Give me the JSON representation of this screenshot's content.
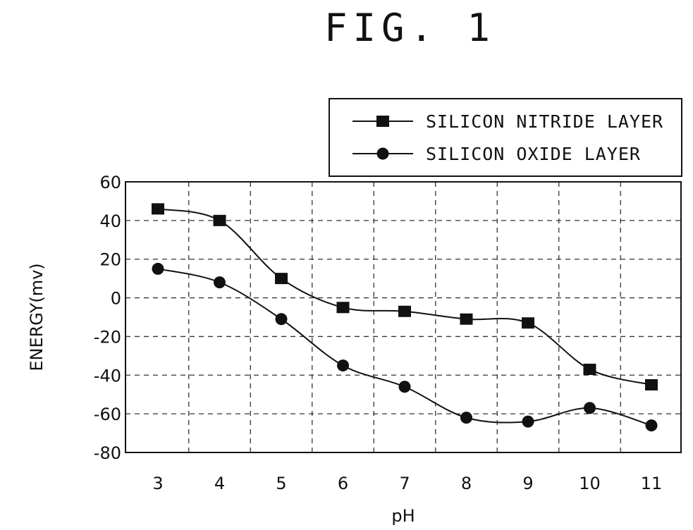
{
  "figure_title": "FIG. 1",
  "chart_data": {
    "type": "line",
    "xlabel": "pH",
    "ylabel": "ENERGY(mv)",
    "x_ticks": [
      3,
      4,
      5,
      6,
      7,
      8,
      9,
      10,
      11
    ],
    "y_ticks": [
      60,
      40,
      20,
      0,
      -20,
      -40,
      -60,
      -80
    ],
    "xlim": [
      3,
      11
    ],
    "ylim": [
      -80,
      60
    ],
    "grid": true,
    "grid_style": "dashed",
    "legend_position": "top-right, above plot",
    "series": [
      {
        "name": "SILICON NITRIDE LAYER",
        "marker": "square",
        "x": [
          3,
          4,
          5,
          6,
          7,
          8,
          9,
          10,
          11
        ],
        "y": [
          46,
          40,
          10,
          -5,
          -7,
          -11,
          -13,
          -37,
          -45
        ]
      },
      {
        "name": "SILICON OXIDE LAYER",
        "marker": "circle",
        "x": [
          3,
          4,
          5,
          6,
          7,
          8,
          9,
          10,
          11
        ],
        "y": [
          15,
          8,
          -11,
          -35,
          -46,
          -62,
          -64,
          -57,
          -66
        ]
      }
    ]
  }
}
